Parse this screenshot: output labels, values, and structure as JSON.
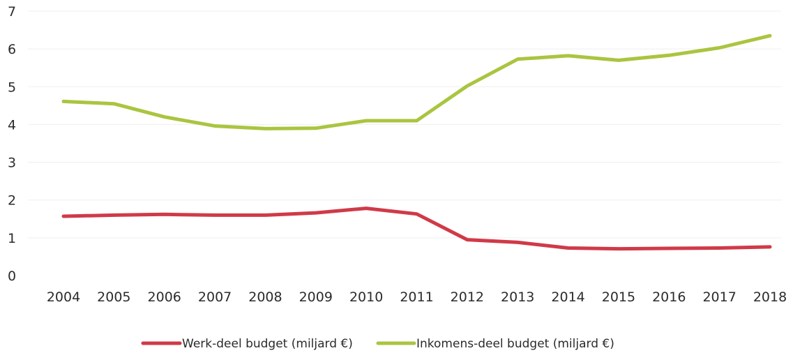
{
  "chart_data": {
    "type": "line",
    "title": "",
    "xlabel": "",
    "ylabel": "",
    "categories": [
      "2004",
      "2005",
      "2006",
      "2007",
      "2008",
      "2009",
      "2010",
      "2011",
      "2012",
      "2013",
      "2014",
      "2015",
      "2016",
      "2017",
      "2018"
    ],
    "ylim": [
      0,
      7
    ],
    "yticks": [
      0,
      1,
      2,
      3,
      4,
      5,
      6,
      7
    ],
    "grid": true,
    "legend_position": "bottom",
    "series": [
      {
        "name": "Werk-deel budget (miljard €)",
        "color": "#d03a48",
        "values": [
          1.57,
          1.6,
          1.62,
          1.6,
          1.6,
          1.66,
          1.78,
          1.63,
          0.95,
          0.88,
          0.73,
          0.71,
          0.72,
          0.73,
          0.76
        ]
      },
      {
        "name": "Inkomens-deel budget (miljard €)",
        "color": "#a9c540",
        "values": [
          4.61,
          4.55,
          4.2,
          3.96,
          3.89,
          3.9,
          4.1,
          4.1,
          5.02,
          5.73,
          5.82,
          5.7,
          5.83,
          6.03,
          6.35
        ]
      }
    ]
  }
}
